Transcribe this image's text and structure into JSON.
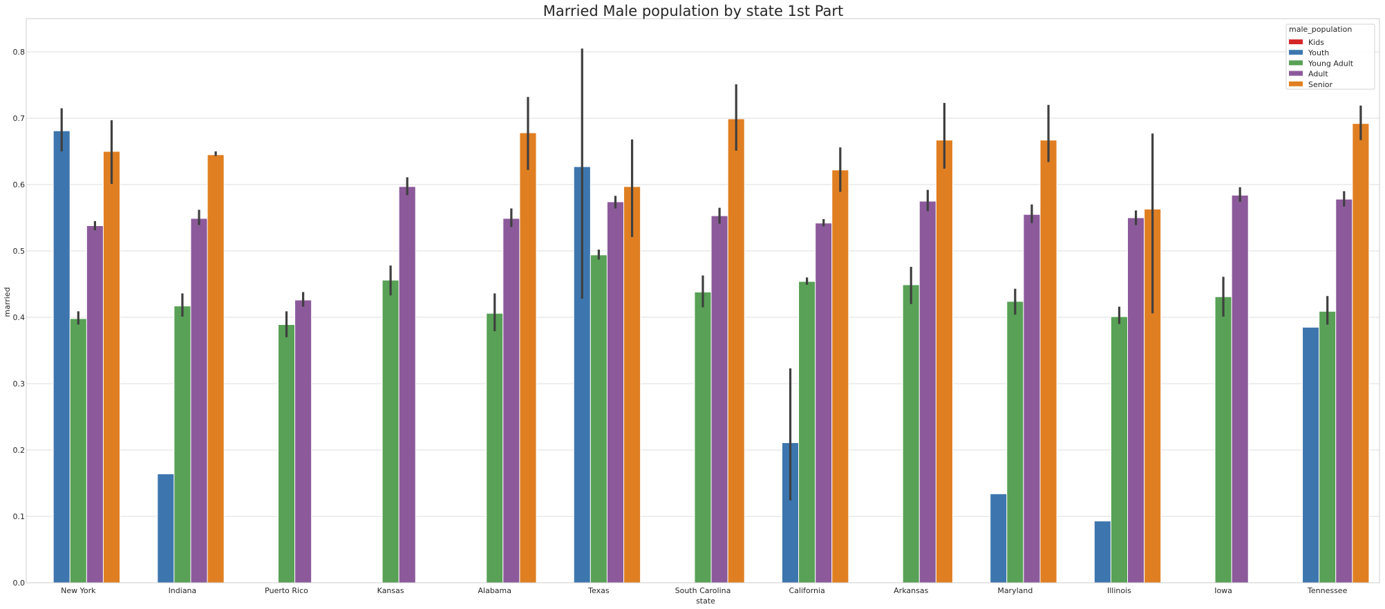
{
  "chart_data": {
    "type": "bar",
    "title": "Married Male population by state 1st  Part",
    "xlabel": "state",
    "ylabel": "married",
    "ylim": [
      0,
      0.85
    ],
    "yticks": [
      "0.0",
      "0.1",
      "0.2",
      "0.3",
      "0.4",
      "0.5",
      "0.6",
      "0.7",
      "0.8"
    ],
    "grid": true,
    "legend": {
      "title": "male_population",
      "position": "top-right"
    },
    "categories": [
      "New York",
      "Indiana",
      "Puerto Rico",
      "Kansas",
      "Alabama",
      "Texas",
      "South Carolina",
      "California",
      "Arkansas",
      "Maryland",
      "Illinois",
      "Iowa",
      "Tennessee"
    ],
    "series": [
      {
        "name": "Kids",
        "color": "#d62728",
        "values": [
          null,
          null,
          null,
          null,
          null,
          null,
          null,
          null,
          null,
          null,
          null,
          null,
          null
        ],
        "err_low": [
          null,
          null,
          null,
          null,
          null,
          null,
          null,
          null,
          null,
          null,
          null,
          null,
          null
        ],
        "err_high": [
          null,
          null,
          null,
          null,
          null,
          null,
          null,
          null,
          null,
          null,
          null,
          null,
          null
        ]
      },
      {
        "name": "Youth",
        "color": "#3d76ae",
        "values": [
          0.681,
          0.164,
          null,
          null,
          null,
          0.627,
          null,
          0.211,
          null,
          0.134,
          0.093,
          null,
          0.385
        ],
        "err_low": [
          0.65,
          null,
          null,
          null,
          null,
          0.428,
          null,
          0.124,
          null,
          null,
          null,
          null,
          null
        ],
        "err_high": [
          0.715,
          null,
          null,
          null,
          null,
          0.805,
          null,
          0.323,
          null,
          null,
          null,
          null,
          null
        ]
      },
      {
        "name": "Young Adult",
        "color": "#58a156",
        "values": [
          0.398,
          0.417,
          0.389,
          0.456,
          0.406,
          0.494,
          0.438,
          0.454,
          0.449,
          0.424,
          0.401,
          0.431,
          0.409
        ],
        "err_low": [
          0.389,
          0.401,
          0.37,
          0.433,
          0.379,
          0.487,
          0.415,
          0.449,
          0.42,
          0.404,
          0.39,
          0.401,
          0.389
        ],
        "err_high": [
          0.409,
          0.436,
          0.409,
          0.478,
          0.436,
          0.502,
          0.463,
          0.46,
          0.476,
          0.443,
          0.416,
          0.461,
          0.432
        ]
      },
      {
        "name": "Adult",
        "color": "#8c5a9b",
        "values": [
          0.538,
          0.549,
          0.426,
          0.597,
          0.549,
          0.574,
          0.553,
          0.542,
          0.575,
          0.555,
          0.55,
          0.584,
          0.578
        ],
        "err_low": [
          0.531,
          0.539,
          0.416,
          0.584,
          0.536,
          0.564,
          0.541,
          0.537,
          0.56,
          0.542,
          0.539,
          0.574,
          0.567
        ],
        "err_high": [
          0.545,
          0.562,
          0.438,
          0.611,
          0.564,
          0.583,
          0.565,
          0.548,
          0.592,
          0.57,
          0.561,
          0.596,
          0.59
        ]
      },
      {
        "name": "Senior",
        "color": "#e07f22",
        "values": [
          0.65,
          0.645,
          null,
          null,
          0.678,
          0.597,
          0.699,
          0.622,
          0.667,
          0.667,
          0.563,
          null,
          0.692
        ],
        "err_low": [
          0.601,
          0.643,
          null,
          null,
          0.622,
          0.521,
          0.651,
          0.589,
          0.624,
          0.634,
          0.406,
          null,
          0.667
        ],
        "err_high": [
          0.697,
          0.65,
          null,
          null,
          0.732,
          0.668,
          0.751,
          0.656,
          0.723,
          0.72,
          0.677,
          null,
          0.719
        ]
      }
    ]
  }
}
